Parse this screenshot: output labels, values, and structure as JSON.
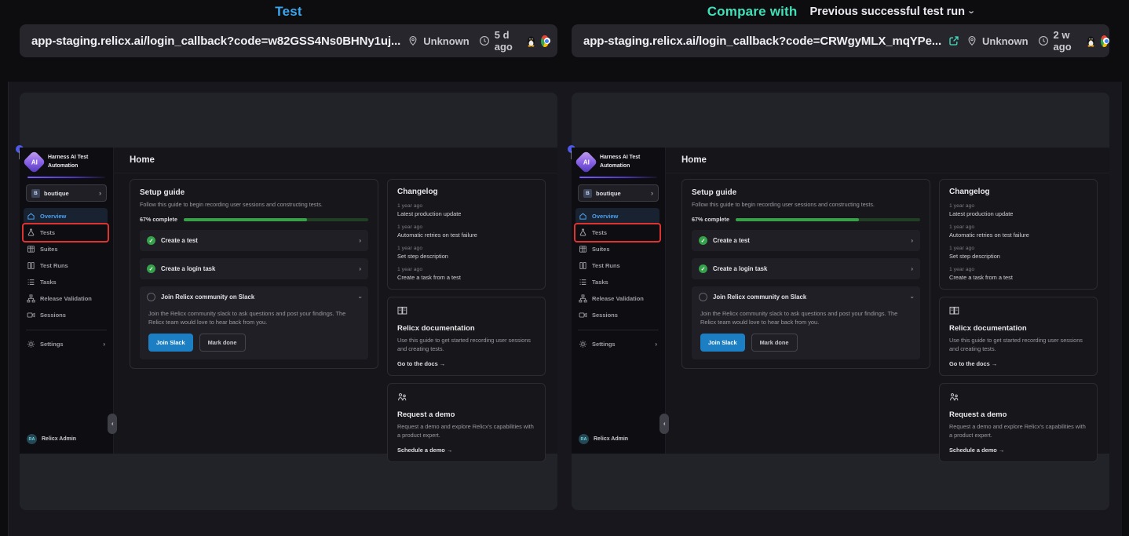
{
  "glyphs": {
    "chevron": "›",
    "check": "✓"
  },
  "panes": [
    {
      "title": "Test",
      "title_color": "#3aa7ef",
      "url": "app-staging.relicx.ai/login_callback?code=w82GSS4Ns0BHNy1uj...",
      "location": "Unknown",
      "age": "5 d ago"
    },
    {
      "title": "Compare with",
      "title_color": "#40e0b8",
      "dropdown_label": "Previous successful test run",
      "url": "app-staging.relicx.ai/login_callback?code=CRWgyMLX_mqYPe...",
      "location": "Unknown",
      "age": "2 w ago"
    }
  ],
  "app": {
    "brand": {
      "logo_text": "AI",
      "line1": "Harness AI Test",
      "line2": "Automation"
    },
    "project": {
      "badge": "B",
      "name": "boutique"
    },
    "sidebar": {
      "items": [
        {
          "label": "Overview"
        },
        {
          "label": "Tests"
        },
        {
          "label": "Suites"
        },
        {
          "label": "Test Runs"
        },
        {
          "label": "Tasks"
        },
        {
          "label": "Release Validation"
        },
        {
          "label": "Sessions"
        }
      ],
      "settings": {
        "label": "Settings"
      },
      "user": {
        "initials": "RA",
        "name": "Relicx Admin"
      }
    },
    "main": {
      "title": "Home",
      "setup": {
        "title": "Setup guide",
        "subtitle": "Follow this guide to begin recording user sessions and constructing tests.",
        "progress_label": "67% complete",
        "progress_pct": 67,
        "items": [
          {
            "label": "Create a test"
          },
          {
            "label": "Create a login task"
          }
        ],
        "slack": {
          "label": "Join Relicx community on Slack",
          "description": "Join the Relicx community slack to ask questions and post your findings. The Relicx team would love to hear back from you.",
          "primary": "Join Slack",
          "secondary": "Mark done"
        }
      },
      "changelog": {
        "title": "Changelog",
        "entries": [
          {
            "time": "1 year ago",
            "text": "Latest production update"
          },
          {
            "time": "1 year ago",
            "text": "Automatic retries on test failure"
          },
          {
            "time": "1 year ago",
            "text": "Set step description"
          },
          {
            "time": "1 year ago",
            "text": "Create a task from a test"
          }
        ]
      },
      "docs": {
        "title": "Relicx documentation",
        "description": "Use this guide to get started recording user sessions and creating tests.",
        "link": "Go to the docs →"
      },
      "demo": {
        "title": "Request a demo",
        "description": "Request a demo and explore Relicx's capabilities with a product expert.",
        "link": "Schedule a demo →"
      }
    },
    "colors": {
      "progress_fill": "#38a049",
      "annotation_box": "#dd3432",
      "active_nav": "#4ea1f0",
      "join_slack_button": "#1c7fc4"
    }
  }
}
